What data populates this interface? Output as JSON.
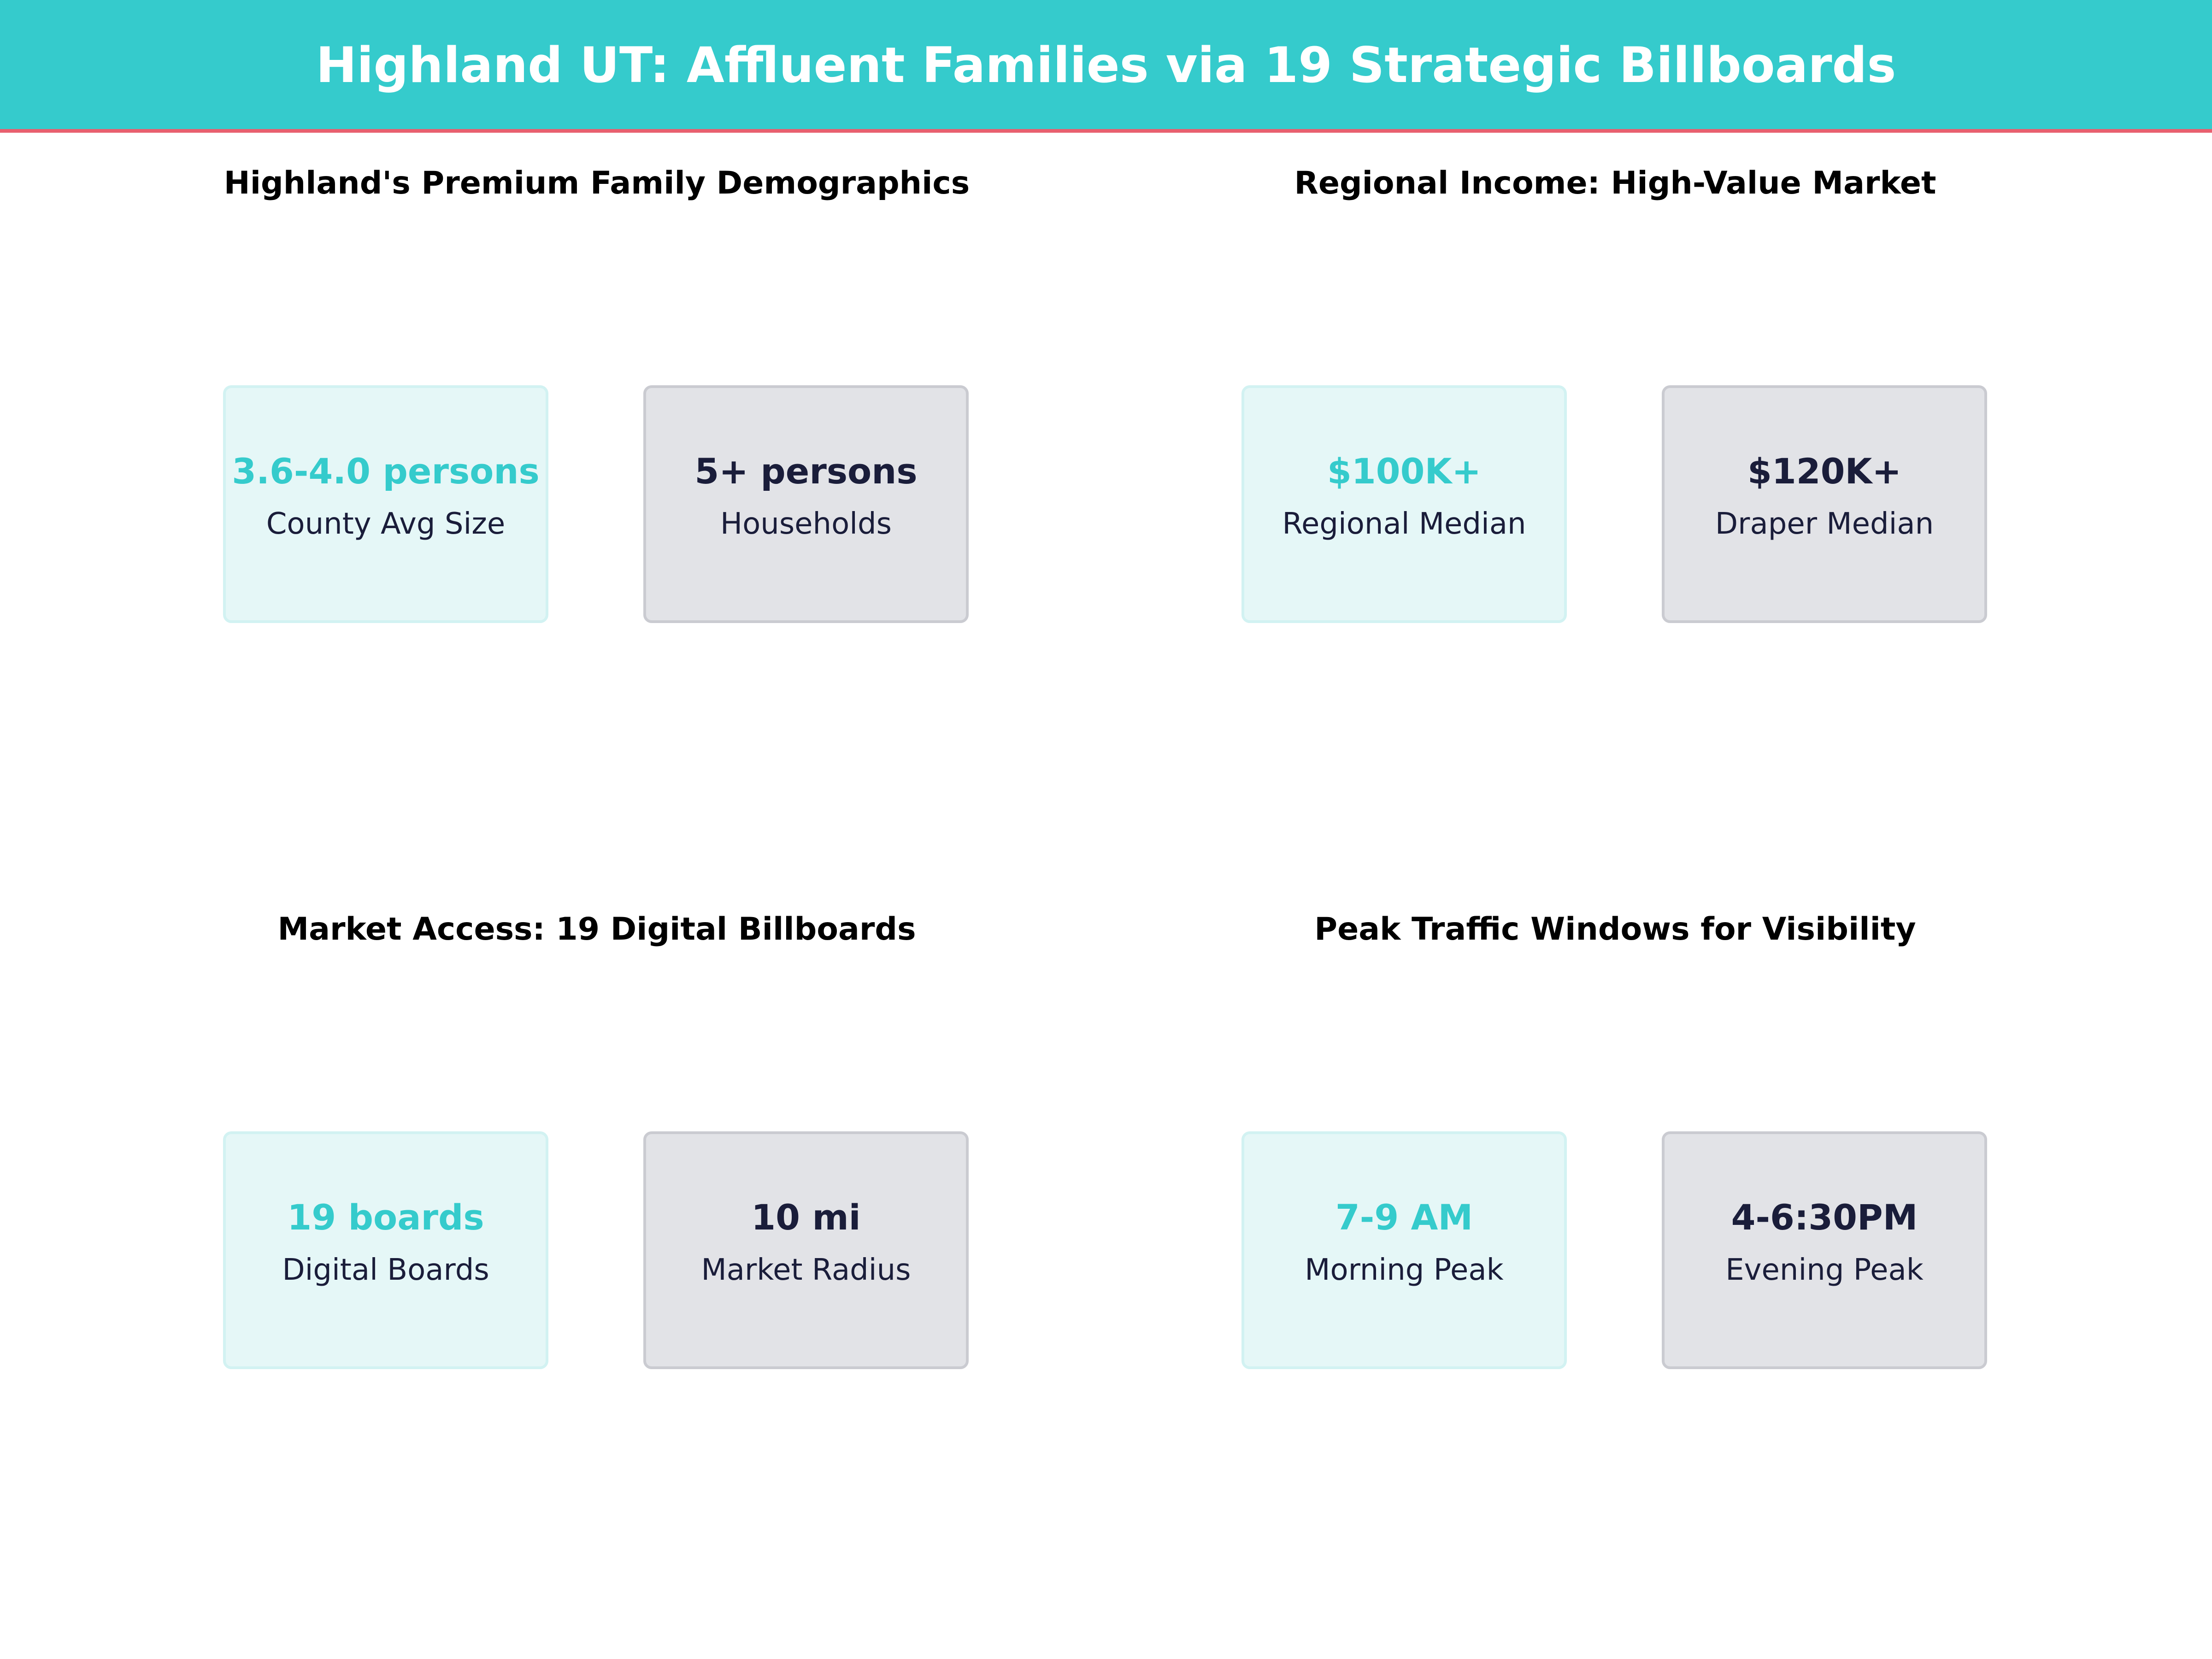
{
  "header": {
    "title": "Highland UT: Affluent Families via 19 Strategic Billboards"
  },
  "colors": {
    "accent": "#35CBCC",
    "divider": "#E8606F",
    "dark_text": "#1A1D3A",
    "light_card": "#E5F7F7",
    "dark_card": "#E2E3E7"
  },
  "panels": [
    {
      "title": "Highland's Premium Family Demographics",
      "cards": [
        {
          "value": "3.6-4.0 persons",
          "label": "County Avg Size"
        },
        {
          "value": "5+ persons",
          "label": "Households"
        }
      ]
    },
    {
      "title": "Regional Income: High-Value Market",
      "cards": [
        {
          "value": "$100K+",
          "label": "Regional Median"
        },
        {
          "value": "$120K+",
          "label": "Draper Median"
        }
      ]
    },
    {
      "title": "Market Access: 19 Digital Billboards",
      "cards": [
        {
          "value": "19 boards",
          "label": "Digital Boards"
        },
        {
          "value": "10 mi",
          "label": "Market Radius"
        }
      ]
    },
    {
      "title": "Peak Traffic Windows for Visibility",
      "cards": [
        {
          "value": "7-9 AM",
          "label": "Morning Peak"
        },
        {
          "value": "4-6:30PM",
          "label": "Evening Peak"
        }
      ]
    }
  ]
}
